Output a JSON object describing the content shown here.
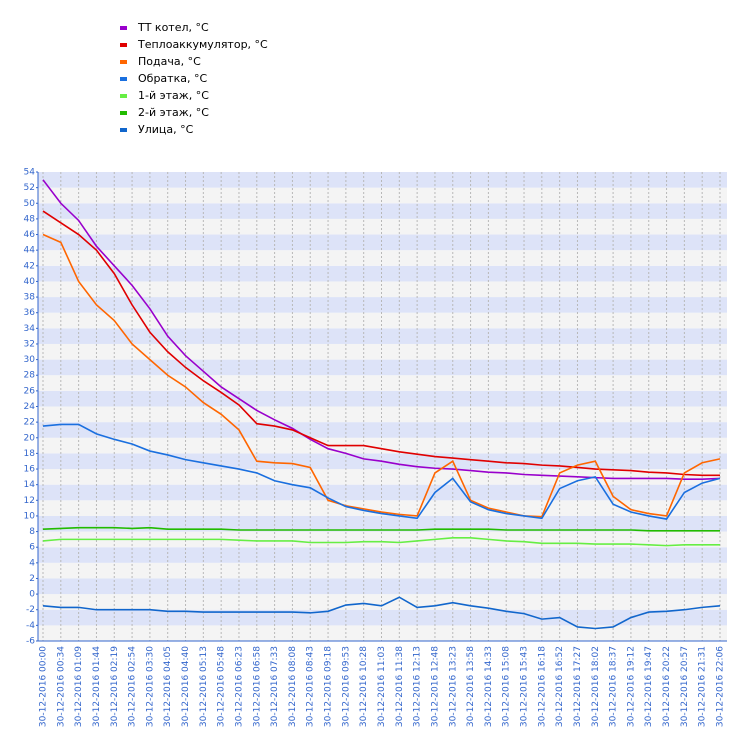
{
  "chart_data": {
    "type": "line",
    "categories": [
      "30-12-2016 00:00",
      "30-12-2016 00:34",
      "30-12-2016 01:09",
      "30-12-2016 01:44",
      "30-12-2016 02:19",
      "30-12-2016 02:54",
      "30-12-2016 03:30",
      "30-12-2016 04:05",
      "30-12-2016 04:40",
      "30-12-2016 05:13",
      "30-12-2016 05:48",
      "30-12-2016 06:23",
      "30-12-2016 06:58",
      "30-12-2016 07:33",
      "30-12-2016 08:08",
      "30-12-2016 08:43",
      "30-12-2016 09:18",
      "30-12-2016 09:53",
      "30-12-2016 10:28",
      "30-12-2016 11:03",
      "30-12-2016 11:38",
      "30-12-2016 12:13",
      "30-12-2016 12:48",
      "30-12-2016 13:23",
      "30-12-2016 13:58",
      "30-12-2016 14:33",
      "30-12-2016 15:08",
      "30-12-2016 15:43",
      "30-12-2016 16:18",
      "30-12-2016 16:52",
      "30-12-2016 17:27",
      "30-12-2016 18:02",
      "30-12-2016 18:37",
      "30-12-2016 19:12",
      "30-12-2016 19:47",
      "30-12-2016 20:22",
      "30-12-2016 20:57",
      "30-12-2016 21:31",
      "30-12-2016 22:06"
    ],
    "series": [
      {
        "name": "ТТ котел, °C",
        "color": "#9900cc",
        "values": [
          53,
          50,
          47.8,
          44.5,
          42,
          39.5,
          36.5,
          33,
          30.5,
          28.5,
          26.5,
          25,
          23.5,
          22.3,
          21.2,
          19.8,
          18.6,
          18,
          17.3,
          17,
          16.6,
          16.3,
          16.1,
          16,
          15.8,
          15.6,
          15.5,
          15.3,
          15.2,
          15.1,
          15,
          14.9,
          14.8,
          14.8,
          14.8,
          14.8,
          14.7,
          14.7,
          14.8
        ]
      },
      {
        "name": "Теплоаккумулятор, °C",
        "color": "#e00000",
        "values": [
          49,
          47.5,
          46,
          44,
          41,
          37,
          33.5,
          31,
          29,
          27.3,
          25.8,
          24.2,
          21.8,
          21.5,
          21,
          20,
          19,
          19,
          19,
          18.6,
          18.2,
          17.9,
          17.6,
          17.4,
          17.2,
          17,
          16.8,
          16.7,
          16.5,
          16.4,
          16.2,
          16,
          15.9,
          15.8,
          15.6,
          15.5,
          15.3,
          15.2,
          15.2
        ]
      },
      {
        "name": "Подача, °C",
        "color": "#ff6600",
        "values": [
          46,
          45,
          40,
          37,
          35,
          32,
          30,
          28,
          26.5,
          24.5,
          23,
          21,
          17,
          16.8,
          16.7,
          16.2,
          12,
          11.3,
          10.9,
          10.5,
          10.2,
          10,
          15.5,
          17,
          12,
          11,
          10.5,
          10,
          9.9,
          15.5,
          16.5,
          17,
          12.5,
          10.8,
          10.3,
          10,
          15.5,
          16.8,
          17.3
        ]
      },
      {
        "name": "Обратка, °C",
        "color": "#1a6fdf",
        "values": [
          21.5,
          21.7,
          21.7,
          20.5,
          19.8,
          19.2,
          18.3,
          17.8,
          17.2,
          16.8,
          16.4,
          16,
          15.5,
          14.5,
          14,
          13.6,
          12.3,
          11.2,
          10.7,
          10.3,
          10,
          9.7,
          13,
          14.8,
          11.8,
          10.8,
          10.3,
          10,
          9.7,
          13.5,
          14.5,
          15,
          11.5,
          10.5,
          10,
          9.6,
          13,
          14.2,
          14.8
        ]
      },
      {
        "name": "1-й этаж, °C",
        "color": "#66ee44",
        "values": [
          6.8,
          7,
          7,
          7,
          7,
          7,
          7,
          7,
          7,
          7,
          7,
          6.9,
          6.8,
          6.8,
          6.8,
          6.6,
          6.6,
          6.6,
          6.7,
          6.7,
          6.6,
          6.8,
          7,
          7.2,
          7.2,
          7,
          6.8,
          6.7,
          6.5,
          6.5,
          6.5,
          6.4,
          6.4,
          6.4,
          6.3,
          6.2,
          6.3,
          6.3,
          6.3
        ]
      },
      {
        "name": "2-й этаж, °C",
        "color": "#22bb00",
        "values": [
          8.3,
          8.4,
          8.5,
          8.5,
          8.5,
          8.4,
          8.5,
          8.3,
          8.3,
          8.3,
          8.3,
          8.2,
          8.2,
          8.2,
          8.2,
          8.2,
          8.2,
          8.2,
          8.2,
          8.2,
          8.2,
          8.2,
          8.3,
          8.3,
          8.3,
          8.3,
          8.2,
          8.2,
          8.2,
          8.2,
          8.2,
          8.2,
          8.2,
          8.2,
          8.1,
          8.1,
          8.1,
          8.1,
          8.1
        ]
      },
      {
        "name": "Улица, °C",
        "color": "#1166cc",
        "values": [
          -1.5,
          -1.7,
          -1.7,
          -2,
          -2,
          -2,
          -2,
          -2.2,
          -2.2,
          -2.3,
          -2.3,
          -2.3,
          -2.3,
          -2.3,
          -2.3,
          -2.4,
          -2.2,
          -1.4,
          -1.2,
          -1.5,
          -0.4,
          -1.7,
          -1.5,
          -1.1,
          -1.5,
          -1.8,
          -2.2,
          -2.5,
          -3.2,
          -3,
          -4.2,
          -4.4,
          -4.2,
          -3,
          -2.3,
          -2.2,
          -2,
          -1.7,
          -1.5
        ]
      }
    ],
    "ylim": [
      -6,
      54
    ],
    "yticks": [
      -6,
      -4,
      -2,
      0,
      2,
      4,
      6,
      8,
      10,
      12,
      14,
      16,
      18,
      20,
      22,
      24,
      26,
      28,
      30,
      32,
      34,
      36,
      38,
      40,
      42,
      44,
      46,
      48,
      50,
      52,
      54
    ],
    "grid": true
  }
}
